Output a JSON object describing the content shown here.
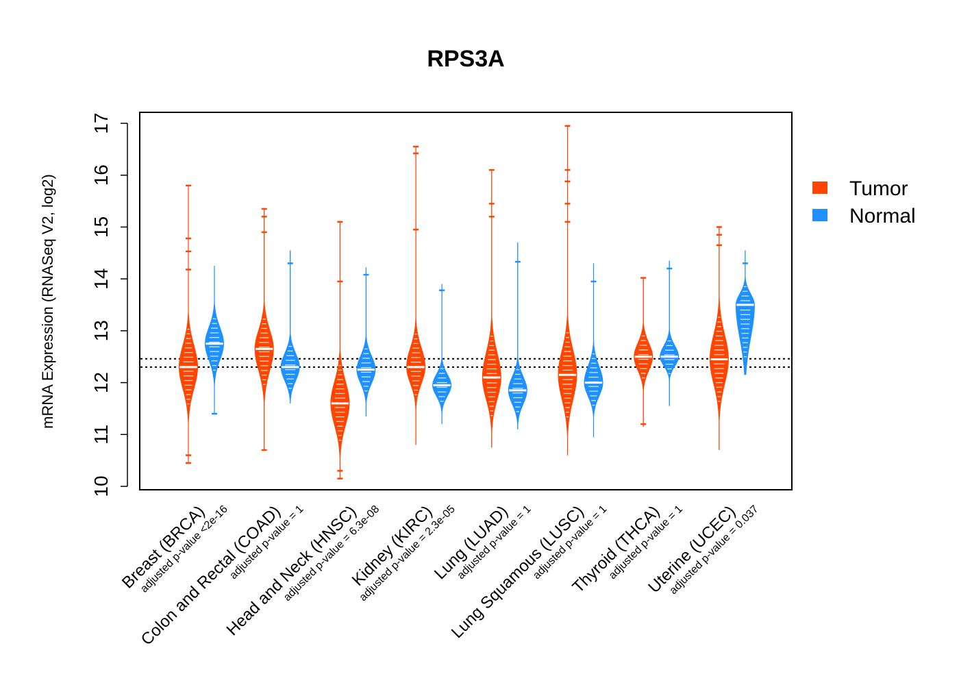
{
  "chart_data": {
    "type": "violin",
    "title": "RPS3A",
    "xlabel": "",
    "ylabel": "mRNA Expression (RNASeq V2, log2)",
    "ylim": [
      9.9,
      17.2
    ],
    "yticks": [
      "10",
      "11",
      "12",
      "13",
      "14",
      "15",
      "16",
      "17"
    ],
    "reference_lines": [
      12.3,
      12.46
    ],
    "legend": {
      "position": "right",
      "entries": [
        {
          "label": "Tumor",
          "color": "#FF4500"
        },
        {
          "label": "Normal",
          "color": "#1E90FF"
        }
      ]
    },
    "categories": [
      {
        "name": "Breast (BRCA)",
        "pvalue": "adjusted p-value <2e-16"
      },
      {
        "name": "Colon and Rectal (COAD)",
        "pvalue": "adjusted p-value = 1"
      },
      {
        "name": "Head and Neck (HNSC)",
        "pvalue": "adjusted p-value = 6.3e-08"
      },
      {
        "name": "Kidney (KIRC)",
        "pvalue": "adjusted p-value = 2.3e-05"
      },
      {
        "name": "Lung (LUAD)",
        "pvalue": "adjusted p-value = 1"
      },
      {
        "name": "Lung Squamous (LUSC)",
        "pvalue": "adjusted p-value = 1"
      },
      {
        "name": "Thyroid (THCA)",
        "pvalue": "adjusted p-value = 1"
      },
      {
        "name": "Uterine (UCEC)",
        "pvalue": "adjusted p-value = 0.037"
      }
    ],
    "series": [
      {
        "name": "Tumor",
        "color": "#FF4500",
        "distributions": [
          {
            "min": 10.45,
            "q1": 11.9,
            "median": 12.3,
            "q3": 12.7,
            "max": 15.8,
            "outliers": [
              15.8,
              14.78,
              14.53,
              14.18,
              10.6,
              10.45
            ]
          },
          {
            "min": 10.7,
            "q1": 12.25,
            "median": 12.65,
            "q3": 13.0,
            "max": 15.35,
            "outliers": [
              15.35,
              15.2,
              14.9,
              10.7
            ]
          },
          {
            "min": 10.15,
            "q1": 11.2,
            "median": 11.6,
            "q3": 12.0,
            "max": 15.1,
            "outliers": [
              15.1,
              13.95,
              10.3,
              10.15
            ]
          },
          {
            "min": 10.8,
            "q1": 12.0,
            "median": 12.3,
            "q3": 12.65,
            "max": 16.55,
            "outliers": [
              16.55,
              16.42,
              14.95
            ]
          },
          {
            "min": 10.75,
            "q1": 11.7,
            "median": 12.1,
            "q3": 12.55,
            "max": 16.1,
            "outliers": [
              16.1,
              15.45,
              15.2
            ]
          },
          {
            "min": 10.6,
            "q1": 11.7,
            "median": 12.15,
            "q3": 12.6,
            "max": 16.95,
            "outliers": [
              16.95,
              16.1,
              15.88,
              15.45,
              15.1
            ]
          },
          {
            "min": 11.15,
            "q1": 12.25,
            "median": 12.5,
            "q3": 12.75,
            "max": 14.02,
            "outliers": [
              14.02,
              11.2
            ]
          },
          {
            "min": 10.7,
            "q1": 12.0,
            "median": 12.45,
            "q3": 12.9,
            "max": 15.0,
            "outliers": [
              15.0,
              14.85,
              14.65
            ]
          }
        ]
      },
      {
        "name": "Normal",
        "color": "#1E90FF",
        "distributions": [
          {
            "min": 11.4,
            "q1": 12.45,
            "median": 12.75,
            "q3": 13.05,
            "max": 14.25,
            "outliers": [
              11.4
            ]
          },
          {
            "min": 11.6,
            "q1": 12.05,
            "median": 12.3,
            "q3": 12.55,
            "max": 14.55,
            "outliers": [
              14.3
            ]
          },
          {
            "min": 11.35,
            "q1": 12.0,
            "median": 12.25,
            "q3": 12.5,
            "max": 14.22,
            "outliers": [
              14.08
            ]
          },
          {
            "min": 11.2,
            "q1": 11.75,
            "median": 11.95,
            "q3": 12.15,
            "max": 13.9,
            "outliers": [
              13.78
            ]
          },
          {
            "min": 11.1,
            "q1": 11.6,
            "median": 11.85,
            "q3": 12.1,
            "max": 14.7,
            "outliers": [
              14.33
            ]
          },
          {
            "min": 10.95,
            "q1": 11.75,
            "median": 12.0,
            "q3": 12.3,
            "max": 14.3,
            "outliers": [
              13.95
            ]
          },
          {
            "min": 11.55,
            "q1": 12.35,
            "median": 12.5,
            "q3": 12.7,
            "max": 14.35,
            "outliers": [
              14.2
            ]
          },
          {
            "min": 12.15,
            "q1": 12.9,
            "median": 13.5,
            "q3": 13.7,
            "max": 14.55,
            "outliers": [
              14.3
            ]
          }
        ]
      }
    ]
  }
}
